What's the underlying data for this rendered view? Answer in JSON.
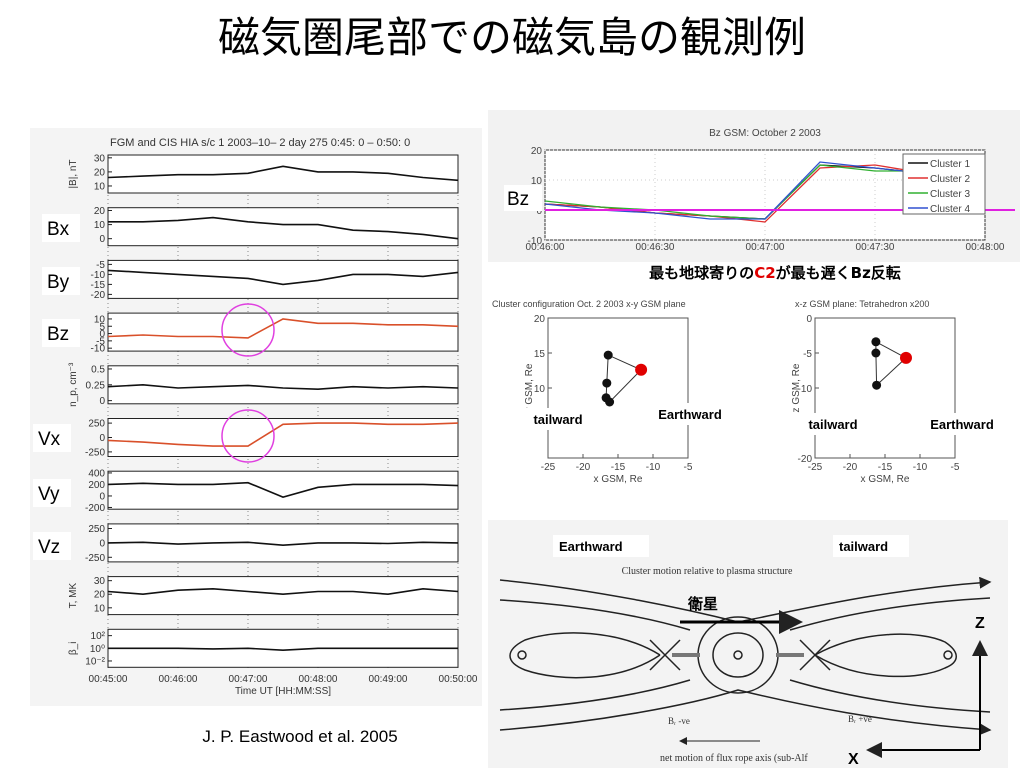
{
  "title": "磁気圏尾部での磁気島の観測例",
  "left_figure": {
    "header": "FGM and CIS HIA s/c 1 2003–10– 2 day 275  0:45: 0 –  0:50: 0",
    "xticks": [
      "00:45:00",
      "00:46:00",
      "00:47:00",
      "00:48:00",
      "00:49:00",
      "00:50:00"
    ],
    "xlabel": "Time UT [HH:MM:SS]",
    "panels": [
      {
        "label": "|B|, nT",
        "ylim": [
          5,
          32
        ],
        "yticks": [
          10,
          20,
          30
        ],
        "color": "#111111",
        "values": [
          16,
          17,
          18,
          18,
          19,
          24,
          20,
          20,
          19,
          16,
          14
        ]
      },
      {
        "ylim": [
          -5,
          22
        ],
        "yticks": [
          0,
          10,
          20
        ],
        "color": "#111111",
        "values": [
          12,
          12,
          13,
          15,
          12,
          10,
          10,
          6,
          5,
          3,
          0
        ]
      },
      {
        "ylim": [
          -22,
          -3
        ],
        "yticks": [
          -5,
          -10,
          -15,
          -20
        ],
        "color": "#111111",
        "values": [
          -8,
          -9,
          -10,
          -11,
          -12,
          -15,
          -13,
          -10,
          -10,
          -11,
          -9
        ]
      },
      {
        "ylim": [
          -12,
          14
        ],
        "yticks": [
          10,
          5,
          0,
          -5,
          -10
        ],
        "color": "#d9502a",
        "values": [
          -2,
          -1,
          -2,
          -2,
          -3,
          10,
          7,
          7,
          6,
          6,
          5
        ]
      },
      {
        "label": "n_p, cm⁻³",
        "ylim": [
          -0.05,
          0.55
        ],
        "yticks": [
          0.5,
          0.25,
          0
        ],
        "color": "#111111",
        "values": [
          0.22,
          0.25,
          0.2,
          0.22,
          0.24,
          0.2,
          0.18,
          0.22,
          0.2,
          0.22,
          0.2
        ]
      },
      {
        "ylim": [
          -330,
          330
        ],
        "yticks": [
          250,
          0,
          -250
        ],
        "color": "#d9502a",
        "values": [
          -50,
          -80,
          -120,
          -150,
          -150,
          230,
          250,
          250,
          230,
          230,
          250
        ]
      },
      {
        "ylim": [
          -230,
          430
        ],
        "yticks": [
          400,
          200,
          0,
          -200
        ],
        "color": "#111111",
        "values": [
          200,
          220,
          200,
          200,
          230,
          -20,
          150,
          200,
          200,
          200,
          180
        ]
      },
      {
        "ylim": [
          -330,
          330
        ],
        "yticks": [
          250,
          0,
          -250
        ],
        "color": "#111111",
        "values": [
          0,
          10,
          -20,
          0,
          10,
          -40,
          0,
          0,
          -10,
          10,
          0
        ]
      },
      {
        "label": "T, MK",
        "ylim": [
          5,
          33
        ],
        "yticks": [
          10,
          20,
          30
        ],
        "color": "#111111",
        "values": [
          22,
          20,
          23,
          24,
          22,
          20,
          22,
          22,
          20,
          24,
          22
        ]
      },
      {
        "label": "β_i",
        "log": true,
        "ylim": [
          0.001,
          1000
        ],
        "yticks": [
          {
            "value": 100,
            "label": "10²"
          },
          {
            "value": 1,
            "label": "10⁰"
          },
          {
            "value": 0.01,
            "label": "10⁻²"
          }
        ],
        "color": "#111111",
        "values": [
          1,
          1,
          1,
          0.8,
          1,
          0.5,
          1,
          1,
          1,
          1,
          1
        ]
      }
    ]
  },
  "overlay_labels": [
    "Bx",
    "By",
    "Bz",
    "Vx",
    "Vy",
    "Vz"
  ],
  "citation": "J. P. Eastwood  et al.  2005",
  "bz_plot": {
    "title": "Bz GSM: October 2 2003",
    "label": "Bz",
    "xticks": [
      "00:46:00",
      "00:46:30",
      "00:47:00",
      "00:47:30",
      "00:48:00"
    ],
    "ylim": [
      -10,
      20
    ],
    "yticks": [
      20,
      10,
      0,
      -10
    ],
    "reference": 0,
    "series": [
      {
        "name": "Cluster 1",
        "color": "#111111",
        "values": [
          2,
          1,
          -1,
          -2,
          -3,
          15,
          14,
          12,
          13
        ]
      },
      {
        "name": "Cluster 2",
        "color": "#e03030",
        "values": [
          2,
          1,
          -1,
          -2,
          -4,
          14,
          15,
          12,
          12
        ]
      },
      {
        "name": "Cluster 3",
        "color": "#30b030",
        "values": [
          3,
          1,
          0,
          -2,
          -3,
          15,
          13,
          13,
          12
        ]
      },
      {
        "name": "Cluster 4",
        "color": "#3050d0",
        "values": [
          2,
          0,
          -1,
          -3,
          -3,
          16,
          14,
          12,
          13
        ]
      }
    ]
  },
  "caption": [
    "最も地球寄りの",
    "C2",
    "が最も遅くBz反転"
  ],
  "config_plots": [
    {
      "title": "Cluster configuration Oct. 2 2003 x-y GSM plane",
      "xlabel": "x GSM, Re",
      "ylabel": "y GSM, Re",
      "xlim": [
        -25,
        -5
      ],
      "xticks": [
        -25,
        -20,
        -15,
        -10,
        -5
      ],
      "ylim": [
        0,
        20
      ],
      "yticks": [
        20,
        15,
        10,
        5
      ],
      "x": [
        -16.4,
        -16.6,
        -16.7,
        -16.2,
        -11.7
      ],
      "y": [
        14.7,
        10.7,
        8.6,
        8,
        12.6
      ]
    },
    {
      "title": "x-z GSM plane: Tetrahedron x200",
      "xlabel": "x GSM, Re",
      "ylabel": "z GSM, Re",
      "xlim": [
        -25,
        -5
      ],
      "xticks": [
        -25,
        -20,
        -15,
        -10,
        -5
      ],
      "ylim": [
        -20,
        0
      ],
      "yticks": [
        0,
        -5,
        -10,
        -15,
        -20
      ],
      "x": [
        -16.3,
        -16.3,
        -16.2,
        -12
      ],
      "y": [
        -3.4,
        -5,
        -9.6,
        -5.7
      ]
    }
  ],
  "direction_labels": [
    "tailward",
    "Earthward",
    "tailward",
    "Earthward"
  ],
  "diagram": {
    "earthward": "Earthward",
    "tailward": "tailward",
    "motion": "Cluster motion relative to plasma structure",
    "satellite": "衛星",
    "z": "Z",
    "x": "X",
    "left_note": "Bᵣ -ve",
    "right_note": "Bᵣ +ve",
    "bottom_note": "net motion of flux rope axis (sub-Alf"
  }
}
